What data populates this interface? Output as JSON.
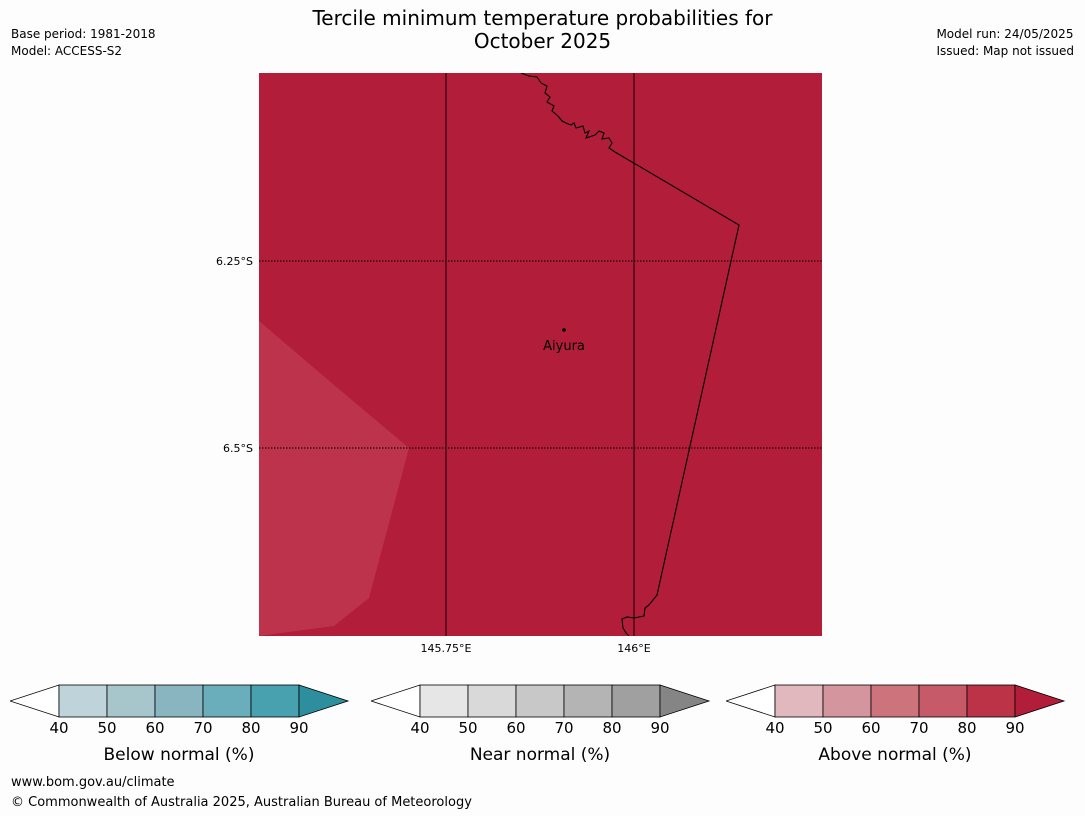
{
  "title": {
    "line1": "Tercile minimum temperature probabilities for",
    "line2": "October 2025"
  },
  "meta": {
    "base_period": "Base period: 1981-2018",
    "model": "Model: ACCESS-S2",
    "model_run": "Model run: 24/05/2025",
    "issued": "Issued: Map not issued"
  },
  "map": {
    "background_color": "#b21d39",
    "lighter_zone_color": "#bd334b",
    "lat_labels": [
      "6.25°S",
      "6.5°S"
    ],
    "lon_labels": [
      "145.75°E",
      "146°E"
    ],
    "place": "Aiyura"
  },
  "legends": [
    {
      "title": "Below normal (%)",
      "ticks": [
        "40",
        "50",
        "60",
        "70",
        "80",
        "90"
      ],
      "colors": [
        "#bfd4da",
        "#a7c6cc",
        "#89b5c1",
        "#6aadbb",
        "#47a1ae",
        "#2d8e9e"
      ]
    },
    {
      "title": "Near normal (%)",
      "ticks": [
        "40",
        "50",
        "60",
        "70",
        "80",
        "90"
      ],
      "colors": [
        "#e6e6e6",
        "#d9d9d9",
        "#c8c8c8",
        "#b4b4b4",
        "#a0a0a0",
        "#858585"
      ]
    },
    {
      "title": "Above normal (%)",
      "ticks": [
        "40",
        "50",
        "60",
        "70",
        "80",
        "90"
      ],
      "colors": [
        "#e1b8bd",
        "#d5959e",
        "#cc737c",
        "#c75a68",
        "#bc3348",
        "#b21d39"
      ]
    }
  ],
  "footer": {
    "url": "www.bom.gov.au/climate",
    "copyright": "© Commonwealth of Australia 2025, Australian Bureau of Meteorology"
  }
}
